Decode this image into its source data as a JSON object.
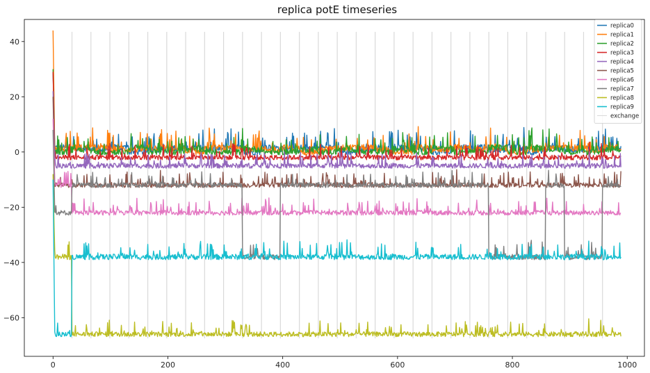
{
  "chart_data": {
    "type": "line",
    "title": "replica potE timeseries",
    "xlabel": "",
    "ylabel": "",
    "xlim": [
      -50,
      1030
    ],
    "ylim": [
      -74,
      48
    ],
    "xticks": [
      0,
      200,
      400,
      600,
      800,
      1000
    ],
    "yticks": [
      -60,
      -40,
      -20,
      0,
      20,
      40
    ],
    "grid": false,
    "legend_position": "top-right",
    "n_steps": 990,
    "exchange_interval": 33,
    "levels": [
      1.5,
      1.0,
      0,
      -2,
      -5,
      -12,
      -22,
      -38,
      -66
    ],
    "level_noise_amplitude": [
      3.0,
      3.0,
      2.6,
      2.2,
      2.2,
      2.2,
      2.2,
      2.5,
      2.2
    ],
    "initial_values": [
      29,
      44,
      30,
      29,
      22,
      20,
      12,
      8,
      -8,
      -10
    ],
    "series": [
      {
        "name": "replica0",
        "color": "#1f77b4",
        "level_sequence": [
          0,
          0,
          1,
          0,
          2,
          1,
          0,
          0,
          1,
          0,
          2,
          0,
          1,
          0,
          0,
          2,
          1,
          0,
          0,
          1,
          2,
          0,
          0,
          1,
          0,
          2,
          0,
          1,
          0,
          0
        ]
      },
      {
        "name": "replica1",
        "color": "#ff7f0e",
        "level_sequence": [
          1,
          0,
          0,
          1,
          1,
          0,
          1,
          2,
          0,
          1,
          0,
          1,
          0,
          2,
          1,
          0,
          0,
          1,
          2,
          0,
          1,
          0,
          1,
          0,
          2,
          1,
          0,
          0,
          1,
          0
        ]
      },
      {
        "name": "replica2",
        "color": "#2ca02c",
        "level_sequence": [
          2,
          1,
          2,
          2,
          0,
          2,
          2,
          1,
          2,
          2,
          1,
          2,
          2,
          1,
          2,
          1,
          2,
          2,
          1,
          2,
          0,
          2,
          2,
          0,
          2,
          0,
          1,
          2,
          2,
          1
        ]
      },
      {
        "name": "replica3",
        "color": "#d62728",
        "level_sequence": [
          3,
          3,
          3,
          3,
          3,
          3,
          3,
          3,
          3,
          3,
          3,
          3,
          3,
          3,
          3,
          3,
          3,
          3,
          3,
          3,
          3,
          3,
          3,
          3,
          3,
          3,
          3,
          3,
          3,
          3
        ]
      },
      {
        "name": "replica4",
        "color": "#9467bd",
        "level_sequence": [
          4,
          4,
          4,
          4,
          4,
          4,
          4,
          4,
          4,
          4,
          4,
          4,
          4,
          4,
          4,
          4,
          4,
          4,
          4,
          4,
          4,
          4,
          4,
          4,
          4,
          4,
          4,
          4,
          4,
          4
        ]
      },
      {
        "name": "replica5",
        "color": "#8c564b",
        "level_sequence": [
          5,
          5,
          5,
          5,
          5,
          5,
          5,
          5,
          5,
          5,
          5,
          5,
          5,
          5,
          5,
          5,
          5,
          5,
          5,
          5,
          5,
          5,
          5,
          5,
          5,
          5,
          5,
          5,
          5,
          5
        ]
      },
      {
        "name": "replica6",
        "color": "#e377c2",
        "level_sequence": [
          5,
          6,
          6,
          6,
          6,
          6,
          6,
          6,
          6,
          6,
          6,
          6,
          6,
          6,
          6,
          6,
          6,
          6,
          6,
          6,
          6,
          6,
          6,
          6,
          6,
          6,
          6,
          6,
          6,
          6
        ]
      },
      {
        "name": "replica7",
        "color": "#7f7f7f",
        "level_sequence": [
          6,
          5,
          5,
          5,
          5,
          5,
          5,
          5,
          5,
          5,
          7,
          7,
          5,
          5,
          5,
          5,
          5,
          5,
          5,
          5,
          5,
          5,
          5,
          7,
          7,
          7,
          5,
          7,
          7,
          5
        ]
      },
      {
        "name": "replica8",
        "color": "#bcbd22",
        "level_sequence": [
          7,
          8,
          8,
          8,
          8,
          8,
          8,
          8,
          8,
          8,
          8,
          8,
          8,
          8,
          8,
          8,
          8,
          8,
          8,
          8,
          8,
          8,
          8,
          8,
          8,
          8,
          8,
          8,
          8,
          8
        ]
      },
      {
        "name": "replica9",
        "color": "#17becf",
        "level_sequence": [
          8,
          7,
          7,
          7,
          7,
          7,
          7,
          7,
          7,
          7,
          7,
          7,
          7,
          7,
          7,
          7,
          7,
          7,
          7,
          7,
          7,
          7,
          7,
          7,
          7,
          7,
          7,
          7,
          7,
          7
        ]
      },
      {
        "name": "exchange",
        "color": "#d9d9d9",
        "kind": "vlines"
      }
    ]
  }
}
